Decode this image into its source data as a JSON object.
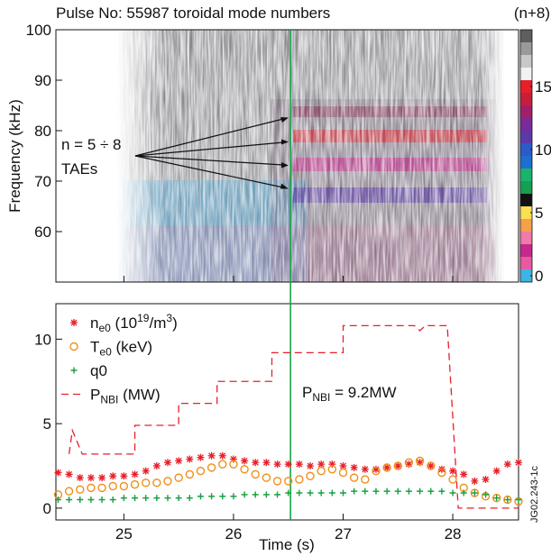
{
  "chart_data": [
    {
      "type": "spectrogram",
      "title": "Pulse No: 55987 toroidal mode numbers",
      "ylabel": "Frequency (kHz)",
      "xlim": [
        24.38,
        28.6
      ],
      "xticks": [
        25,
        26,
        27,
        28
      ],
      "ylim": [
        50,
        100
      ],
      "yticks": [
        60,
        70,
        80,
        90,
        100
      ],
      "annotations": [
        "n = 5 ÷ 8",
        "TAEs"
      ],
      "colorbar": {
        "title": "(n+8)",
        "lim": [
          -0.5,
          19.5
        ],
        "ticks": [
          0,
          5,
          10,
          15
        ],
        "colors": [
          "#3cb4e6",
          "#e85aa0",
          "#c8288c",
          "#f07aa8",
          "#f5a04a",
          "#f8e050",
          "#111111",
          "#14a050",
          "#18b46a",
          "#1f6fd0",
          "#2a5bc8",
          "#5a3aa8",
          "#7a2a9a",
          "#a0206a",
          "#c81e3c",
          "#e81e28",
          "#f2f2f2",
          "#c8c8c8",
          "#9a9a9a",
          "#5e5e5e"
        ]
      },
      "vline": {
        "x": 26.52,
        "color": "#1aa34a"
      }
    },
    {
      "type": "line",
      "xlabel": "Time (s)",
      "xlim": [
        24.38,
        28.6
      ],
      "xticks": [
        25,
        26,
        27,
        28
      ],
      "ylim": [
        -0.7,
        12.1
      ],
      "yticks": [
        0,
        5,
        10
      ],
      "series": [
        {
          "name": [
            {
              "text": "n"
            },
            {
              "text": "e0",
              "script": "sub"
            },
            {
              "text": " (10"
            },
            {
              "text": "19",
              "script": "sup"
            },
            {
              "text": "/m"
            },
            {
              "text": "3",
              "script": "sup"
            },
            {
              "text": ")"
            }
          ],
          "style": "star",
          "color": "#e8202a",
          "x": [
            24.4,
            24.5,
            24.6,
            24.7,
            24.8,
            24.9,
            25.0,
            25.1,
            25.2,
            25.3,
            25.4,
            25.5,
            25.6,
            25.7,
            25.8,
            25.9,
            26.0,
            26.1,
            26.2,
            26.3,
            26.4,
            26.5,
            26.6,
            26.7,
            26.8,
            26.9,
            27.0,
            27.1,
            27.2,
            27.3,
            27.4,
            27.5,
            27.6,
            27.7,
            27.8,
            27.9,
            28.0,
            28.1,
            28.2,
            28.3,
            28.4,
            28.5,
            28.6
          ],
          "values": [
            2.1,
            2.0,
            1.8,
            1.8,
            1.8,
            1.9,
            1.9,
            2.0,
            2.2,
            2.5,
            2.7,
            2.8,
            2.9,
            3.0,
            3.1,
            3.1,
            2.9,
            2.8,
            2.7,
            2.7,
            2.6,
            2.6,
            2.6,
            2.5,
            2.6,
            2.6,
            2.5,
            2.4,
            2.3,
            2.3,
            2.4,
            2.5,
            2.6,
            2.7,
            2.5,
            2.3,
            2.2,
            2.0,
            1.6,
            1.7,
            2.2,
            2.6,
            2.7
          ]
        },
        {
          "name": [
            {
              "text": "T"
            },
            {
              "text": "e0",
              "script": "sub"
            },
            {
              "text": " (keV)"
            }
          ],
          "style": "circle",
          "color": "#f0901e",
          "x": [
            24.4,
            24.5,
            24.6,
            24.7,
            24.8,
            24.9,
            25.0,
            25.1,
            25.2,
            25.3,
            25.4,
            25.5,
            25.6,
            25.7,
            25.8,
            25.9,
            26.0,
            26.1,
            26.2,
            26.3,
            26.4,
            26.5,
            26.6,
            26.7,
            26.8,
            26.9,
            27.0,
            27.1,
            27.2,
            27.3,
            27.4,
            27.5,
            27.6,
            27.7,
            27.8,
            27.9,
            28.0,
            28.1,
            28.2,
            28.3,
            28.4,
            28.5,
            28.6
          ],
          "values": [
            0.8,
            1.0,
            1.1,
            1.2,
            1.2,
            1.3,
            1.3,
            1.4,
            1.5,
            1.5,
            1.6,
            1.8,
            2.0,
            2.2,
            2.4,
            2.6,
            2.6,
            2.3,
            2.0,
            1.8,
            1.6,
            1.6,
            1.7,
            1.9,
            2.2,
            2.3,
            2.1,
            1.8,
            1.7,
            2.2,
            2.4,
            2.5,
            2.7,
            2.8,
            2.5,
            2.1,
            1.7,
            1.2,
            0.9,
            0.7,
            0.6,
            0.5,
            0.4
          ]
        },
        {
          "name": [
            {
              "text": "q0"
            }
          ],
          "style": "plus",
          "color": "#18a040",
          "x": [
            24.4,
            24.5,
            24.6,
            24.7,
            24.8,
            24.9,
            25.0,
            25.1,
            25.2,
            25.3,
            25.4,
            25.5,
            25.6,
            25.7,
            25.8,
            25.9,
            26.0,
            26.1,
            26.2,
            26.3,
            26.4,
            26.5,
            26.6,
            26.7,
            26.8,
            26.9,
            27.0,
            27.1,
            27.2,
            27.3,
            27.4,
            27.5,
            27.6,
            27.7,
            27.8,
            27.9,
            28.0,
            28.1,
            28.2,
            28.3,
            28.4,
            28.5,
            28.6
          ],
          "values": [
            0.5,
            0.5,
            0.5,
            0.5,
            0.5,
            0.5,
            0.6,
            0.6,
            0.6,
            0.6,
            0.6,
            0.6,
            0.6,
            0.7,
            0.7,
            0.7,
            0.7,
            0.8,
            0.8,
            0.8,
            0.8,
            0.9,
            0.9,
            0.9,
            0.9,
            0.9,
            0.9,
            1.0,
            1.0,
            1.0,
            1.0,
            1.0,
            1.0,
            1.0,
            1.0,
            1.0,
            0.9,
            0.9,
            0.9,
            0.8,
            0.6,
            0.5,
            0.5
          ]
        },
        {
          "name": [
            {
              "text": "P"
            },
            {
              "text": "NBI",
              "script": "sub"
            },
            {
              "text": " (MW)"
            }
          ],
          "style": "dashed",
          "color": "#e8202a",
          "x": [
            24.5,
            24.53,
            24.62,
            25.1,
            25.1,
            25.5,
            25.5,
            25.85,
            25.85,
            26.35,
            26.35,
            27.0,
            27.0,
            27.65,
            27.7,
            27.75,
            27.95,
            28.05,
            28.6
          ],
          "values": [
            3.2,
            4.6,
            3.2,
            3.2,
            4.9,
            4.9,
            6.2,
            6.2,
            7.5,
            7.5,
            9.2,
            9.2,
            10.8,
            10.8,
            10.5,
            10.8,
            10.8,
            0,
            0
          ]
        }
      ],
      "annotation": [
        {
          "text": "P"
        },
        {
          "text": "NBI",
          "script": "sub"
        },
        {
          "text": " = 9.2MW"
        }
      ],
      "side_label": "JG02.243-1c"
    }
  ]
}
